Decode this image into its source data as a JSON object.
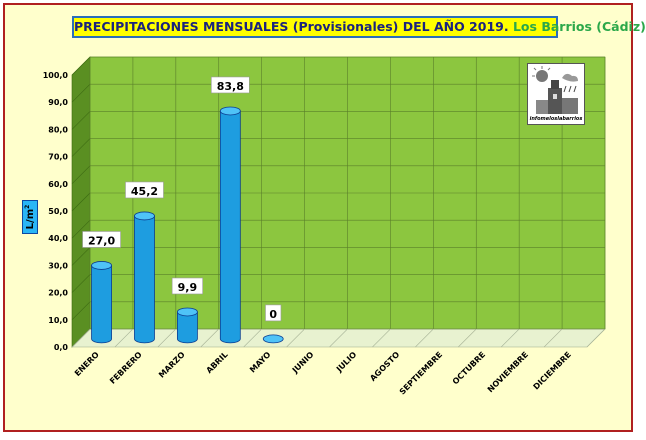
{
  "title": {
    "main": "PRECIPITACIONES MENSUALES (Provisionales) DEL AÑO 2019.",
    "place": "Los Barrios (Cádiz)"
  },
  "logo": {
    "caption": "infomeloslabarrios"
  },
  "colors": {
    "plot_green": "#8cc63f",
    "plot_side": "#5a8f22",
    "plot_floor": "#e8f2d0",
    "bar_blue": "#1e9de0",
    "frame_red": "#b02020",
    "title_yellow": "#ffff00"
  },
  "chart_data": {
    "type": "bar",
    "style": "3d-cylinder",
    "title": "PRECIPITACIONES MENSUALES (Provisionales) DEL AÑO 2019. Los Barrios (Cádiz)",
    "ylabel": "L/m²",
    "ylabel_text": "L/m",
    "ylabel_sup": "2",
    "ylim": [
      0,
      100
    ],
    "yticks": [
      "0,0",
      "10,0",
      "20,0",
      "30,0",
      "40,0",
      "50,0",
      "60,0",
      "70,0",
      "80,0",
      "90,0",
      "100,0"
    ],
    "grid": true,
    "legend": "none",
    "categories": [
      "ENERO",
      "FEBRERO",
      "MARZO",
      "ABRIL",
      "MAYO",
      "JUNIO",
      "JULIO",
      "AGOSTO",
      "SEPTIEMBRE",
      "OCTUBRE",
      "NOVIEMBRE",
      "DICIEMBRE"
    ],
    "values": [
      27.0,
      45.2,
      9.9,
      83.8,
      0,
      null,
      null,
      null,
      null,
      null,
      null,
      null
    ],
    "data_labels": [
      "27,0",
      "45,2",
      "9,9",
      "83,8",
      "0",
      "",
      "",
      "",
      "",
      "",
      "",
      ""
    ]
  }
}
